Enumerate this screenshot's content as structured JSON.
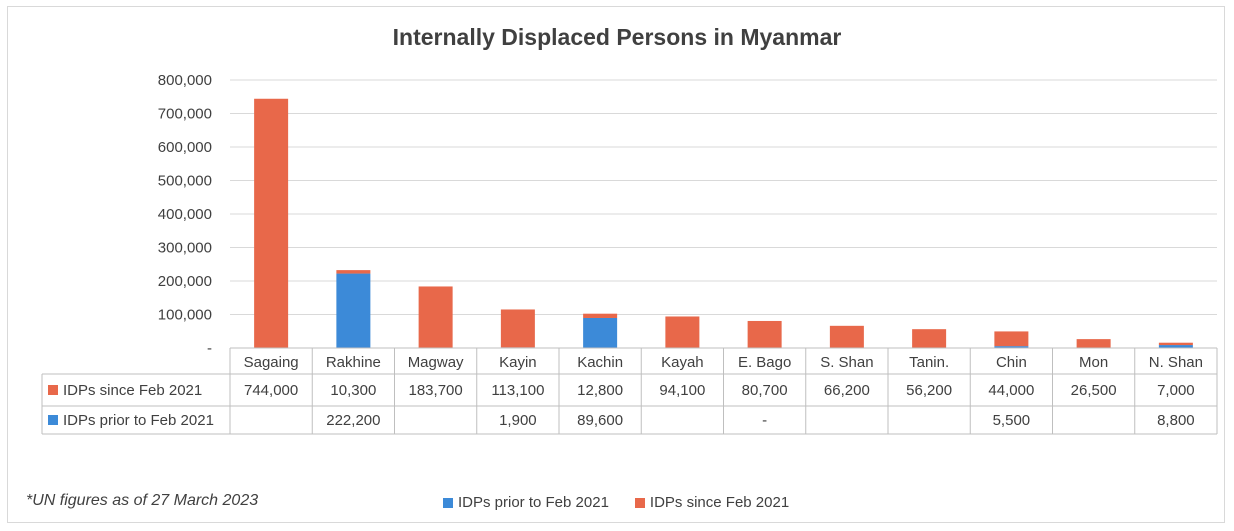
{
  "chart_data": {
    "type": "bar",
    "stacked": true,
    "title": "Internally Displaced Persons in Myanmar",
    "categories": [
      "Sagaing",
      "Rakhine",
      "Magway",
      "Kayin",
      "Kachin",
      "Kayah",
      "E. Bago",
      "S. Shan",
      "Tanin.",
      "Chin",
      "Mon",
      "N. Shan"
    ],
    "series": [
      {
        "name": "IDPs prior to Feb 2021",
        "color": "#3c8ad8",
        "values": [
          null,
          222200,
          null,
          1900,
          89600,
          null,
          0,
          null,
          null,
          5500,
          null,
          8800
        ],
        "labels": [
          "",
          "222,200",
          "",
          "1,900",
          "89,600",
          "",
          "-",
          "",
          "",
          "5,500",
          "",
          "8,800"
        ]
      },
      {
        "name": "IDPs since Feb 2021",
        "color": "#e8684a",
        "values": [
          744000,
          10300,
          183700,
          113100,
          12800,
          94100,
          80700,
          66200,
          56200,
          44000,
          26500,
          7000
        ],
        "labels": [
          "744,000",
          "10,300",
          "183,700",
          "113,100",
          "12,800",
          "94,100",
          "80,700",
          "66,200",
          "56,200",
          "44,000",
          "26,500",
          "7,000"
        ]
      }
    ],
    "table_row_order": [
      1,
      0
    ],
    "ylim": [
      0,
      800000
    ],
    "yticks": [
      0,
      100000,
      200000,
      300000,
      400000,
      500000,
      600000,
      700000,
      800000
    ],
    "ytick_labels": [
      "-",
      "100,000",
      "200,000",
      "300,000",
      "400,000",
      "500,000",
      "600,000",
      "700,000",
      "800,000"
    ],
    "grid": true,
    "legend_position": "bottom",
    "footnote": "*UN figures as of 27 March 2023"
  }
}
